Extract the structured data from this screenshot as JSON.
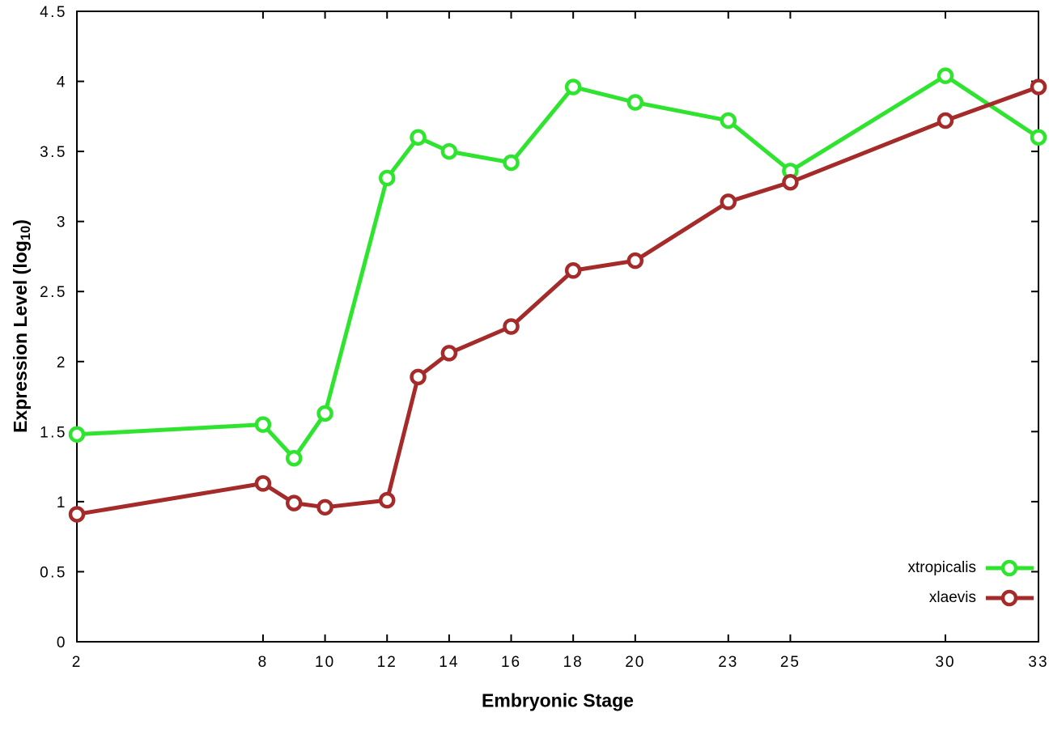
{
  "chart_data": {
    "type": "line",
    "title": "",
    "xlabel": "Embryonic Stage",
    "ylabel": {
      "text": "Expression Level (log",
      "sub": "10",
      "suffix": ")"
    },
    "grid": false,
    "legend_position": "bottom-right-inside",
    "xlim": [
      2,
      33
    ],
    "ylim": [
      0,
      4.5
    ],
    "x_ticks": [
      2,
      8,
      10,
      12,
      14,
      16,
      18,
      20,
      23,
      25,
      30,
      33
    ],
    "y_ticks": [
      0,
      0.5,
      1,
      1.5,
      2,
      2.5,
      3,
      3.5,
      4,
      4.5
    ],
    "x": [
      2,
      8,
      9,
      10,
      12,
      13,
      14,
      16,
      18,
      20,
      23,
      25,
      30,
      33
    ],
    "series": [
      {
        "name": "xtropicalis",
        "color": "#2ee42e",
        "marker": "open-circle",
        "values": [
          1.48,
          1.55,
          1.31,
          1.63,
          3.31,
          3.6,
          3.5,
          3.42,
          3.96,
          3.85,
          3.72,
          3.36,
          4.04,
          3.6
        ]
      },
      {
        "name": "xlaevis",
        "color": "#a52a2a",
        "marker": "open-circle",
        "values": [
          0.91,
          1.13,
          0.99,
          0.96,
          1.01,
          1.89,
          2.06,
          2.25,
          2.65,
          2.72,
          3.14,
          3.28,
          3.72,
          3.96
        ]
      }
    ]
  }
}
